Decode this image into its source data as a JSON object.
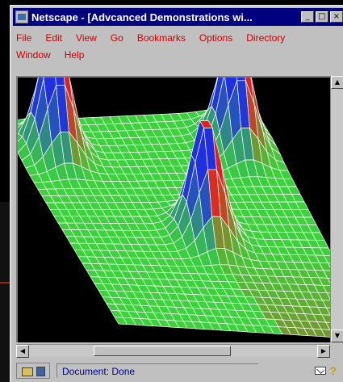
{
  "window": {
    "title": "Netscape - [Advcanced Demonstrations wi...",
    "minimize_glyph": "_",
    "maximize_glyph": "□",
    "close_glyph": "×"
  },
  "menu": {
    "row1": [
      "File",
      "Edit",
      "View",
      "Go",
      "Bookmarks",
      "Options",
      "Directory"
    ],
    "row2": [
      "Window",
      "Help"
    ]
  },
  "content": {
    "visualization": "3d-surface-plot-three-peaks",
    "colors": {
      "background": "#000000",
      "base": "#3bd23b",
      "peak_blue": "#2030e0",
      "peak_red": "#e02020",
      "grid": "#ffffff"
    }
  },
  "scrollbars": {
    "up_arrow": "▲",
    "down_arrow": "▼",
    "left_arrow": "◀",
    "right_arrow": "▶"
  },
  "status": {
    "text": "Document: Done",
    "help_glyph": "?"
  }
}
